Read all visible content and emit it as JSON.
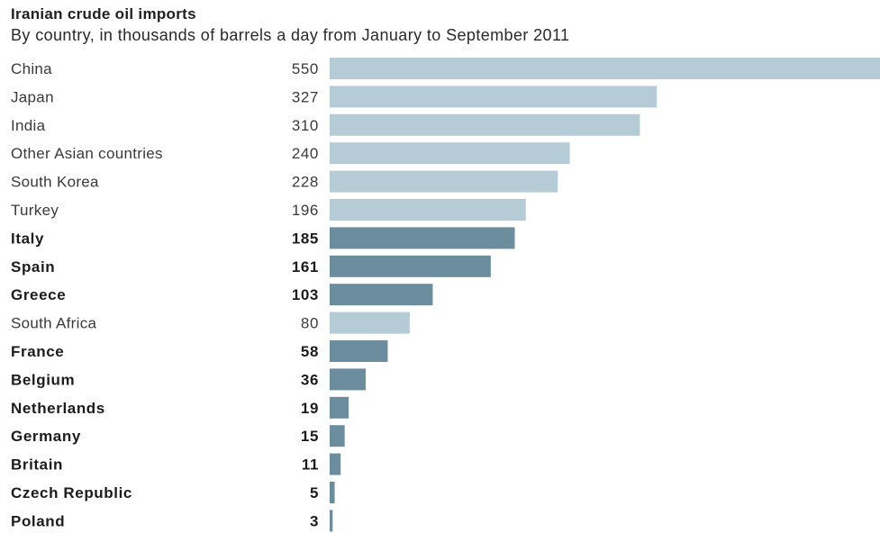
{
  "chart_data": {
    "type": "bar",
    "orientation": "horizontal",
    "title": "Iranian crude oil imports",
    "subtitle": "By country, in thousands of barrels a day from January to September 2011",
    "categories": [
      "China",
      "Japan",
      "India",
      "Other Asian countries",
      "South Korea",
      "Turkey",
      "Italy",
      "Spain",
      "Greece",
      "South Africa",
      "France",
      "Belgium",
      "Netherlands",
      "Germany",
      "Britain",
      "Czech Republic",
      "Poland"
    ],
    "values": [
      550,
      327,
      310,
      240,
      228,
      196,
      185,
      161,
      103,
      80,
      58,
      36,
      19,
      15,
      11,
      5,
      3
    ],
    "value_labels": [
      "550",
      "327",
      "310",
      "240",
      "228",
      "196",
      "185",
      "161",
      "103",
      "80",
      "58",
      "36",
      "19",
      "15",
      "11",
      "5",
      "3"
    ],
    "highlighted": [
      false,
      false,
      false,
      false,
      false,
      false,
      true,
      true,
      true,
      false,
      true,
      true,
      true,
      true,
      true,
      true,
      true
    ],
    "xlim": [
      0,
      550
    ],
    "grid": false,
    "legend": "none",
    "colors": {
      "default_bar": "#b5cbd5",
      "highlight_bar": "#6c8d9e"
    }
  }
}
